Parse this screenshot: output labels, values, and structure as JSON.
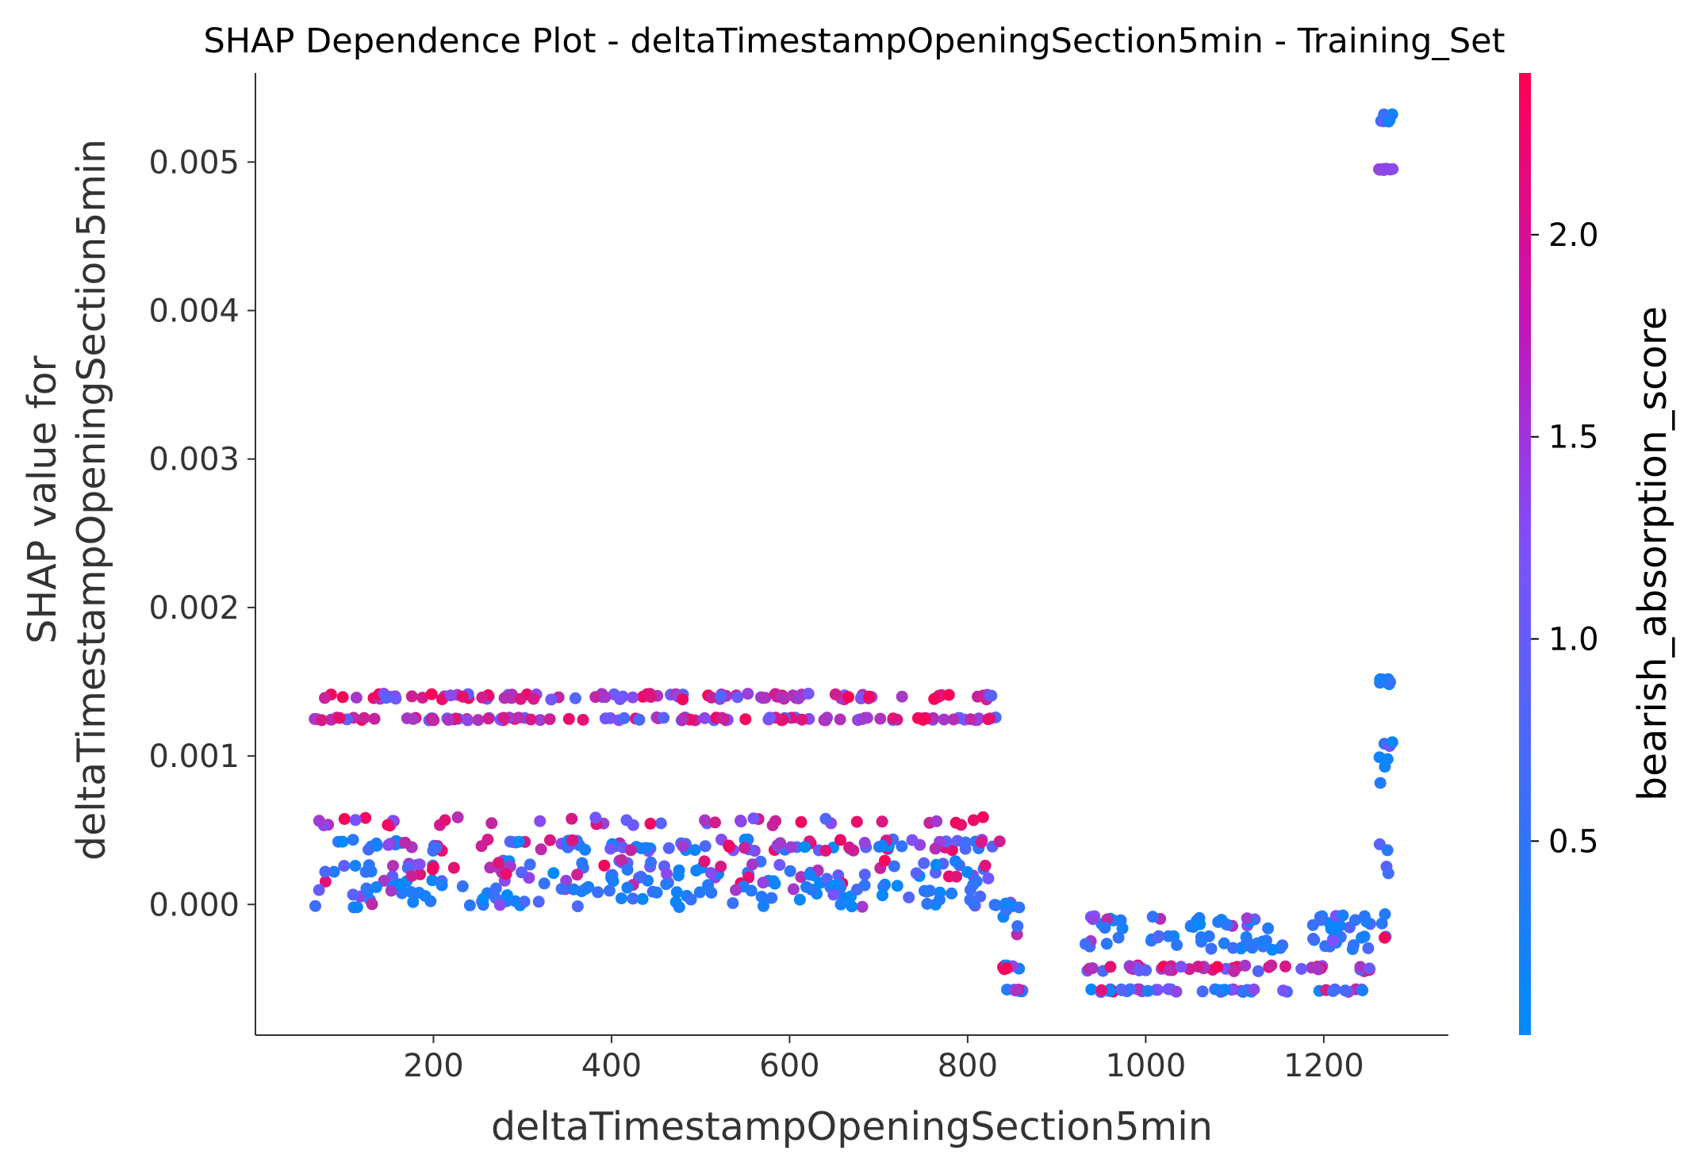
{
  "chart_data": {
    "type": "scatter",
    "title": "SHAP Dependence Plot - deltaTimestampOpeningSection5min - Training_Set",
    "xlabel": "deltaTimestampOpeningSection5min",
    "ylabel_line1": "SHAP value for",
    "ylabel_line2": "deltaTimestampOpeningSection5min",
    "xlim": [
      0,
      1340
    ],
    "ylim": [
      -0.00088,
      0.0056
    ],
    "x_ticks": [
      {
        "value": 200,
        "label": "200"
      },
      {
        "value": 400,
        "label": "400"
      },
      {
        "value": 600,
        "label": "600"
      },
      {
        "value": 800,
        "label": "800"
      },
      {
        "value": 1000,
        "label": "1000"
      },
      {
        "value": 1200,
        "label": "1200"
      }
    ],
    "y_ticks": [
      {
        "value": 0.0,
        "label": "0.000"
      },
      {
        "value": 0.001,
        "label": "0.001"
      },
      {
        "value": 0.002,
        "label": "0.002"
      },
      {
        "value": 0.003,
        "label": "0.003"
      },
      {
        "value": 0.004,
        "label": "0.004"
      },
      {
        "value": 0.005,
        "label": "0.005"
      }
    ],
    "grid": false,
    "colorbar": {
      "label": "bearish_absorption_score",
      "range": [
        0.02,
        2.4
      ],
      "ticks": [
        {
          "value": 0.5,
          "label": "0.5"
        },
        {
          "value": 1.0,
          "label": "1.0"
        },
        {
          "value": 1.5,
          "label": "1.5"
        },
        {
          "value": 2.0,
          "label": "2.0"
        }
      ],
      "color_low": "#008bfb",
      "color_mid": "#7c52ff",
      "color_high": "#ff0051"
    },
    "point_bands": [
      {
        "x_range": [
          65,
          840
        ],
        "y": 0.0014,
        "spread": 2e-05,
        "color_mix": "high"
      },
      {
        "x_range": [
          65,
          840
        ],
        "y": 0.00125,
        "spread": 1e-05,
        "color_mix": "high"
      },
      {
        "x_range": [
          65,
          840
        ],
        "y": 0.00056,
        "spread": 3e-05,
        "color_mix": "high",
        "sparse": true
      },
      {
        "x_range": [
          65,
          840
        ],
        "y": 0.0004,
        "spread": 4e-05,
        "color_mix": "mixed"
      },
      {
        "x_range": [
          65,
          840
        ],
        "y": 0.00022,
        "spread": 8e-05,
        "color_mix": "mixed"
      },
      {
        "x_range": [
          65,
          840
        ],
        "y": 6e-05,
        "spread": 8e-05,
        "color_mix": "low"
      },
      {
        "x_range": [
          838,
          862
        ],
        "y": -0.0001,
        "spread": 0.00015,
        "color_mix": "low"
      },
      {
        "x_range": [
          838,
          862
        ],
        "y": -0.00043,
        "spread": 2e-05,
        "color_mix": "mixed"
      },
      {
        "x_range": [
          838,
          862
        ],
        "y": -0.00058,
        "spread": 1e-05,
        "color_mix": "mixed"
      },
      {
        "x_range": [
          930,
          1260
        ],
        "y": -0.00012,
        "spread": 5e-05,
        "color_mix": "low"
      },
      {
        "x_range": [
          930,
          1260
        ],
        "y": -0.00026,
        "spread": 5e-05,
        "color_mix": "low"
      },
      {
        "x_range": [
          930,
          1260
        ],
        "y": -0.00043,
        "spread": 2e-05,
        "color_mix": "high"
      },
      {
        "x_range": [
          930,
          1260
        ],
        "y": -0.00058,
        "spread": 1e-05,
        "color_mix": "mixed"
      },
      {
        "x_range": [
          1262,
          1278
        ],
        "y": 0.0001,
        "spread": 0.00035,
        "color_mix": "mixed"
      },
      {
        "x_range": [
          1262,
          1278
        ],
        "y": 0.00095,
        "spread": 0.00018,
        "color_mix": "low"
      },
      {
        "x_range": [
          1262,
          1278
        ],
        "y": 0.0015,
        "spread": 2e-05,
        "color_mix": "low"
      },
      {
        "x_range": [
          1262,
          1278
        ],
        "y": 0.00495,
        "spread": 5e-06,
        "color_mix": "mid"
      },
      {
        "x_range": [
          1262,
          1278
        ],
        "y": 0.0053,
        "spread": 3e-05,
        "color_mix": "low"
      }
    ]
  }
}
